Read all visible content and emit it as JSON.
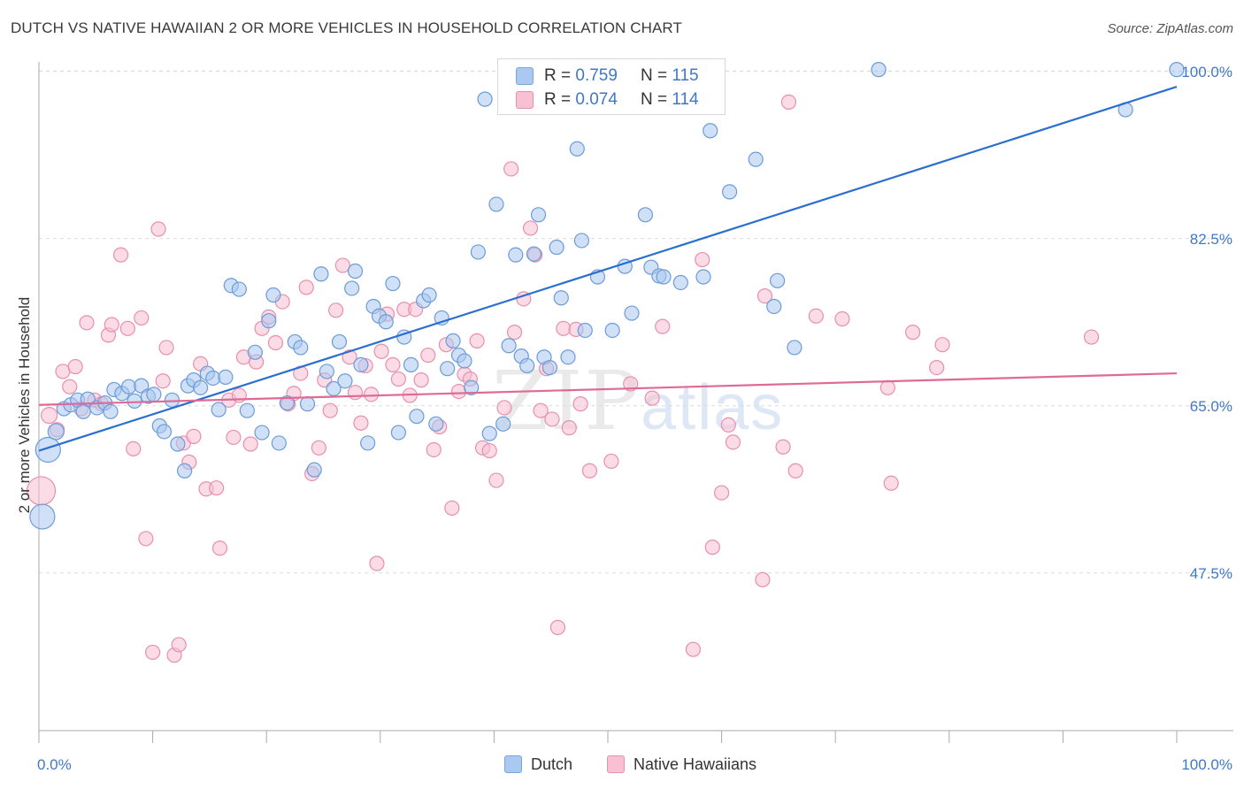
{
  "title": "DUTCH VS NATIVE HAWAIIAN 2 OR MORE VEHICLES IN HOUSEHOLD CORRELATION CHART",
  "source": "Source: ZipAtlas.com",
  "watermark": {
    "zip": "ZIP",
    "atlas": "atlas"
  },
  "legend": {
    "rows": [
      {
        "r_label": "R =",
        "r_value": "0.759",
        "n_label": "N =",
        "n_value": "115",
        "color": "#aac8f0",
        "border": "#7aa6e0"
      },
      {
        "r_label": "R =",
        "r_value": "0.074",
        "n_label": "N =",
        "n_value": "114",
        "color": "#f8c0d2",
        "border": "#e890ae"
      }
    ]
  },
  "bottom_legend": [
    {
      "label": "Dutch",
      "color": "#aac8f0",
      "border": "#7aa6e0"
    },
    {
      "label": "Native Hawaiians",
      "color": "#f8c0d2",
      "border": "#e890ae"
    }
  ],
  "chart_data": {
    "type": "scatter",
    "title": "DUTCH VS NATIVE HAWAIIAN 2 OR MORE VEHICLES IN HOUSEHOLD CORRELATION CHART",
    "xlabel": "",
    "ylabel": "2 or more Vehicles in Household",
    "xlim": [
      0,
      100
    ],
    "ylim": [
      31,
      101
    ],
    "x_tick_labels": [
      "0.0%",
      "100.0%"
    ],
    "y_ticks": [
      47.5,
      65.0,
      82.5,
      100.0
    ],
    "y_tick_labels": [
      "47.5%",
      "65.0%",
      "82.5%",
      "100.0%"
    ],
    "grid": true,
    "legend_position": "top-center",
    "colors": {
      "dutch_fill": "#aac8f0",
      "dutch_stroke": "#6b9bd8",
      "dutch_line": "#2a6fd0",
      "nh_fill": "#f8c0d2",
      "nh_stroke": "#e88fae",
      "nh_line": "#e06a96",
      "tick_label": "#3f78c8"
    },
    "series": [
      {
        "name": "Dutch",
        "trend": {
          "x": [
            0,
            100
          ],
          "y": [
            60.3,
            98.4
          ]
        },
        "points": [
          [
            0.3,
            53.4,
            14
          ],
          [
            0.8,
            60.4,
            14
          ],
          [
            1.5,
            62.3,
            9
          ],
          [
            2.2,
            64.7,
            8
          ],
          [
            2.8,
            65.1,
            8
          ],
          [
            3.4,
            65.6,
            8
          ],
          [
            3.9,
            64.4,
            8
          ],
          [
            4.3,
            65.7,
            8
          ],
          [
            5.1,
            64.8,
            8
          ],
          [
            5.8,
            65.3,
            8
          ],
          [
            6.3,
            64.4,
            8
          ],
          [
            6.6,
            66.7,
            8
          ],
          [
            7.3,
            66.3,
            8
          ],
          [
            7.9,
            67.0,
            8
          ],
          [
            8.4,
            65.5,
            8
          ],
          [
            9.0,
            67.1,
            8
          ],
          [
            9.6,
            66.0,
            8
          ],
          [
            10.1,
            66.2,
            8
          ],
          [
            10.6,
            62.9,
            8
          ],
          [
            11.0,
            62.3,
            8
          ],
          [
            11.7,
            65.6,
            8
          ],
          [
            12.2,
            61.0,
            8
          ],
          [
            12.8,
            58.2,
            8
          ],
          [
            13.1,
            67.1,
            8
          ],
          [
            13.6,
            67.7,
            8
          ],
          [
            14.2,
            66.9,
            8
          ],
          [
            14.8,
            68.4,
            8
          ],
          [
            15.3,
            67.9,
            8
          ],
          [
            15.8,
            64.6,
            8
          ],
          [
            16.4,
            68.0,
            8
          ],
          [
            16.9,
            77.6,
            8
          ],
          [
            17.6,
            77.2,
            8
          ],
          [
            18.3,
            64.5,
            8
          ],
          [
            19.0,
            70.6,
            8
          ],
          [
            19.6,
            62.2,
            8
          ],
          [
            20.2,
            73.9,
            8
          ],
          [
            20.6,
            76.6,
            8
          ],
          [
            21.1,
            61.1,
            8
          ],
          [
            21.8,
            65.3,
            8
          ],
          [
            22.5,
            71.7,
            8
          ],
          [
            23.0,
            71.1,
            8
          ],
          [
            23.6,
            65.2,
            8
          ],
          [
            24.2,
            58.3,
            8
          ],
          [
            24.8,
            78.8,
            8
          ],
          [
            25.3,
            68.6,
            8
          ],
          [
            25.9,
            66.8,
            8
          ],
          [
            26.4,
            71.7,
            8
          ],
          [
            26.9,
            67.6,
            8
          ],
          [
            27.5,
            77.3,
            8
          ],
          [
            27.8,
            79.1,
            8
          ],
          [
            28.3,
            69.3,
            8
          ],
          [
            28.9,
            61.1,
            8
          ],
          [
            29.4,
            75.4,
            8
          ],
          [
            29.9,
            74.4,
            8
          ],
          [
            30.5,
            73.8,
            8
          ],
          [
            31.1,
            77.8,
            8
          ],
          [
            31.6,
            62.2,
            8
          ],
          [
            32.1,
            72.2,
            8
          ],
          [
            32.7,
            69.3,
            8
          ],
          [
            33.2,
            63.9,
            8
          ],
          [
            33.8,
            76.0,
            8
          ],
          [
            34.3,
            76.6,
            8
          ],
          [
            34.9,
            63.1,
            8
          ],
          [
            35.4,
            74.2,
            8
          ],
          [
            35.9,
            68.9,
            8
          ],
          [
            36.4,
            71.8,
            8
          ],
          [
            36.9,
            70.3,
            8
          ],
          [
            37.4,
            69.7,
            8
          ],
          [
            38.0,
            66.9,
            8
          ],
          [
            38.6,
            81.1,
            8
          ],
          [
            39.2,
            97.1,
            8
          ],
          [
            39.6,
            62.1,
            8
          ],
          [
            40.2,
            86.1,
            8
          ],
          [
            40.8,
            63.1,
            8
          ],
          [
            41.3,
            71.3,
            8
          ],
          [
            41.9,
            80.8,
            8
          ],
          [
            42.4,
            70.2,
            8
          ],
          [
            42.9,
            69.2,
            8
          ],
          [
            43.5,
            80.9,
            8
          ],
          [
            43.9,
            85.0,
            8
          ],
          [
            44.4,
            70.1,
            8
          ],
          [
            44.9,
            69.0,
            8
          ],
          [
            45.5,
            81.6,
            8
          ],
          [
            45.9,
            76.3,
            8
          ],
          [
            46.5,
            70.1,
            8
          ],
          [
            47.3,
            91.9,
            8
          ],
          [
            47.7,
            82.3,
            8
          ],
          [
            48.0,
            72.9,
            8
          ],
          [
            49.1,
            78.5,
            8
          ],
          [
            50.4,
            72.9,
            8
          ],
          [
            51.5,
            79.6,
            8
          ],
          [
            52.1,
            74.7,
            8
          ],
          [
            53.3,
            85.0,
            8
          ],
          [
            53.8,
            79.5,
            8
          ],
          [
            54.5,
            78.6,
            8
          ],
          [
            54.9,
            78.5,
            8
          ],
          [
            56.4,
            77.9,
            8
          ],
          [
            58.4,
            78.5,
            8
          ],
          [
            59.0,
            93.8,
            8
          ],
          [
            60.7,
            87.4,
            8
          ],
          [
            63.0,
            90.8,
            8
          ],
          [
            64.6,
            75.4,
            8
          ],
          [
            64.9,
            78.1,
            8
          ],
          [
            66.4,
            71.1,
            8
          ],
          [
            73.8,
            100.2,
            8
          ],
          [
            95.5,
            96.0,
            8
          ],
          [
            100.0,
            100.2,
            8
          ]
        ]
      },
      {
        "name": "Native Hawaiians",
        "trend": {
          "x": [
            0,
            100
          ],
          "y": [
            65.1,
            68.4
          ]
        },
        "points": [
          [
            0.2,
            56.1,
            16
          ],
          [
            0.9,
            64.0,
            9
          ],
          [
            1.6,
            62.5,
            8
          ],
          [
            2.1,
            68.6,
            8
          ],
          [
            2.7,
            67.0,
            8
          ],
          [
            3.2,
            69.1,
            8
          ],
          [
            3.7,
            64.7,
            8
          ],
          [
            4.2,
            73.7,
            8
          ],
          [
            4.9,
            65.6,
            8
          ],
          [
            5.5,
            65.2,
            8
          ],
          [
            6.1,
            72.4,
            8
          ],
          [
            6.4,
            73.5,
            8
          ],
          [
            7.2,
            80.8,
            8
          ],
          [
            7.8,
            73.1,
            8
          ],
          [
            8.3,
            60.5,
            8
          ],
          [
            9.0,
            74.2,
            8
          ],
          [
            9.4,
            51.1,
            8
          ],
          [
            10.0,
            39.2,
            8
          ],
          [
            10.5,
            83.5,
            8
          ],
          [
            10.9,
            67.6,
            8
          ],
          [
            11.2,
            71.1,
            8
          ],
          [
            11.9,
            38.9,
            8
          ],
          [
            12.3,
            40.0,
            8
          ],
          [
            12.7,
            61.1,
            8
          ],
          [
            13.2,
            59.1,
            8
          ],
          [
            13.6,
            61.8,
            8
          ],
          [
            14.2,
            69.4,
            8
          ],
          [
            14.7,
            56.3,
            8
          ],
          [
            15.6,
            56.4,
            8
          ],
          [
            15.9,
            50.1,
            8
          ],
          [
            16.7,
            65.6,
            8
          ],
          [
            17.1,
            61.7,
            8
          ],
          [
            17.6,
            66.1,
            8
          ],
          [
            18.0,
            70.1,
            8
          ],
          [
            18.6,
            61.0,
            8
          ],
          [
            19.1,
            69.6,
            8
          ],
          [
            19.6,
            73.1,
            8
          ],
          [
            20.2,
            74.3,
            8
          ],
          [
            20.8,
            71.6,
            8
          ],
          [
            21.4,
            75.9,
            8
          ],
          [
            21.9,
            65.2,
            8
          ],
          [
            22.4,
            66.3,
            8
          ],
          [
            23.0,
            68.4,
            8
          ],
          [
            23.5,
            77.4,
            8
          ],
          [
            24.0,
            57.9,
            8
          ],
          [
            24.6,
            60.6,
            8
          ],
          [
            25.1,
            67.7,
            8
          ],
          [
            25.6,
            64.5,
            8
          ],
          [
            26.1,
            75.0,
            8
          ],
          [
            26.7,
            79.7,
            8
          ],
          [
            27.3,
            70.1,
            8
          ],
          [
            27.8,
            66.4,
            8
          ],
          [
            28.3,
            63.2,
            8
          ],
          [
            28.7,
            69.2,
            8
          ],
          [
            29.2,
            66.2,
            8
          ],
          [
            29.7,
            48.5,
            8
          ],
          [
            30.1,
            70.7,
            8
          ],
          [
            30.6,
            74.6,
            8
          ],
          [
            31.1,
            69.3,
            8
          ],
          [
            31.6,
            67.8,
            8
          ],
          [
            32.1,
            75.1,
            8
          ],
          [
            32.6,
            66.1,
            8
          ],
          [
            33.1,
            75.1,
            8
          ],
          [
            33.6,
            67.7,
            8
          ],
          [
            34.2,
            70.3,
            8
          ],
          [
            34.7,
            60.4,
            8
          ],
          [
            35.2,
            62.8,
            8
          ],
          [
            35.8,
            71.4,
            8
          ],
          [
            36.3,
            54.3,
            8
          ],
          [
            36.9,
            66.5,
            8
          ],
          [
            37.4,
            68.3,
            8
          ],
          [
            37.9,
            67.8,
            8
          ],
          [
            38.5,
            71.8,
            8
          ],
          [
            39.0,
            60.6,
            8
          ],
          [
            39.6,
            60.3,
            8
          ],
          [
            40.2,
            57.2,
            8
          ],
          [
            40.9,
            64.8,
            8
          ],
          [
            41.5,
            89.8,
            8
          ],
          [
            41.8,
            72.7,
            8
          ],
          [
            42.6,
            76.2,
            8
          ],
          [
            43.2,
            83.6,
            8
          ],
          [
            43.6,
            80.8,
            8
          ],
          [
            44.1,
            64.5,
            8
          ],
          [
            44.6,
            68.9,
            8
          ],
          [
            45.1,
            63.6,
            8
          ],
          [
            45.6,
            41.8,
            8
          ],
          [
            46.1,
            73.1,
            8
          ],
          [
            46.6,
            62.7,
            8
          ],
          [
            47.2,
            73.0,
            8
          ],
          [
            47.6,
            65.2,
            8
          ],
          [
            48.4,
            58.2,
            8
          ],
          [
            50.3,
            59.2,
            8
          ],
          [
            52.0,
            67.3,
            8
          ],
          [
            53.9,
            65.8,
            8
          ],
          [
            54.8,
            73.3,
            8
          ],
          [
            57.5,
            39.5,
            8
          ],
          [
            58.3,
            80.3,
            8
          ],
          [
            59.2,
            50.2,
            8
          ],
          [
            60.0,
            55.9,
            8
          ],
          [
            60.6,
            63.0,
            8
          ],
          [
            63.6,
            46.8,
            8
          ],
          [
            63.8,
            76.5,
            8
          ],
          [
            65.4,
            60.7,
            8
          ],
          [
            65.9,
            96.8,
            8
          ],
          [
            66.5,
            58.2,
            8
          ],
          [
            68.3,
            74.4,
            8
          ],
          [
            70.6,
            74.1,
            8
          ],
          [
            74.6,
            66.9,
            8
          ],
          [
            74.9,
            56.9,
            8
          ],
          [
            76.8,
            72.7,
            8
          ],
          [
            78.9,
            69.0,
            8
          ],
          [
            79.4,
            71.4,
            8
          ],
          [
            92.5,
            72.2,
            8
          ],
          [
            61.0,
            61.2,
            8
          ]
        ]
      }
    ]
  }
}
